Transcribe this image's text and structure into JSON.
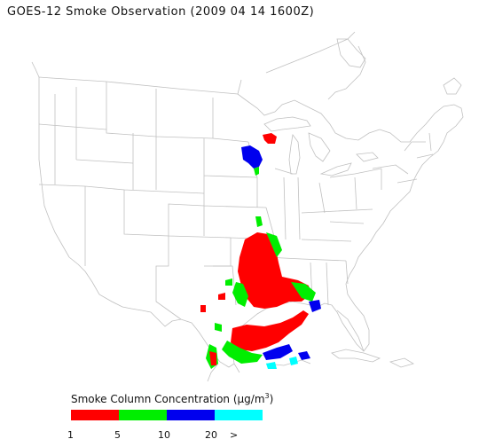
{
  "title": "GOES-12 Smoke Observation (2009 04 14  1600Z)",
  "legend": {
    "title_prefix": "Smoke Column Concentration (",
    "unit_mu": "μ",
    "unit_rest": "g/m",
    "unit_sup": "3",
    "title_suffix": ")",
    "ticks": [
      "1",
      "5",
      "10",
      "20",
      ">"
    ],
    "colors": [
      "#ff0000",
      "#00ee00",
      "#0000ee",
      "#00ffff"
    ]
  },
  "map": {
    "region": "continental-united-states",
    "land_color": "#ffffff",
    "boundary_color": "#b8b8b8"
  }
}
